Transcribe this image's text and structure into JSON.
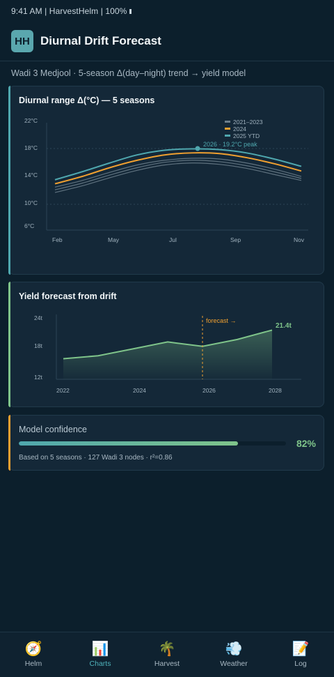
{
  "status_bar": {
    "text": "9:41 AM | HarvestHelm | 100%"
  },
  "app": {
    "logo": "HH",
    "title": "Diurnal Drift Forecast"
  },
  "subtitle": "Wadi 3 Medjool · 5-season Δ(day–night) trend → yield model",
  "colors": {
    "accent_teal": "#4fa7ae",
    "accent_orange": "#f0a030",
    "accent_green": "#7fc48a",
    "background": "#0c1f2c",
    "card": "#142838"
  },
  "diurnal_card": {
    "title": "Diurnal range Δ(°C) — 5 seasons",
    "peak_label": "2026 · 19.2°C peak"
  },
  "yield_card": {
    "title": "Yield forecast from drift",
    "forecast_label": "forecast →",
    "end_label": "21.4t"
  },
  "confidence_card": {
    "label": "Model confidence",
    "value_text": "82%",
    "value": 0.82,
    "footnote": "Based on 5 seasons · 127 Wadi 3 nodes · r²=0.86"
  },
  "tabs": [
    {
      "label": "Helm",
      "icon": "compass-icon",
      "glyph": "🧭",
      "active": false
    },
    {
      "label": "Charts",
      "icon": "bar-chart-icon",
      "glyph": "📊",
      "active": true
    },
    {
      "label": "Harvest",
      "icon": "palm-tree-icon",
      "glyph": "🌴",
      "active": false
    },
    {
      "label": "Weather",
      "icon": "wind-icon",
      "glyph": "💨",
      "active": false
    },
    {
      "label": "Log",
      "icon": "memo-icon",
      "glyph": "📝",
      "active": false
    }
  ],
  "chart_data": [
    {
      "type": "line",
      "title": "Diurnal range Δ(°C) — 5 seasons",
      "x_ticks": [
        "Feb",
        "May",
        "Jul",
        "Sep",
        "Nov"
      ],
      "y_ticks": [
        "22°C",
        "18°C",
        "14°C",
        "10°C",
        "6°C"
      ],
      "ylim": [
        6,
        22
      ],
      "grid": "dotted horizontal at 10°C and 18°C",
      "legend": {
        "placement": "top-right",
        "entries": [
          "2021–2023",
          "2024",
          "2025 YTD"
        ]
      },
      "annotation": "2026 · 19.2°C peak",
      "series": [
        {
          "name": "2021–2023",
          "color": "#6c7f8c",
          "x": [
            0,
            1,
            2,
            3,
            4,
            5,
            6,
            7,
            8,
            9
          ],
          "y": [
            11.6,
            12.6,
            13.8,
            14.9,
            15.7,
            16.0,
            15.8,
            15.2,
            14.3,
            13.4
          ]
        },
        {
          "color": "#6c7f8c",
          "x": [
            0,
            1,
            2,
            3,
            4,
            5,
            6,
            7,
            8,
            9
          ],
          "y": [
            12.0,
            13.0,
            14.2,
            15.3,
            16.1,
            16.4,
            16.2,
            15.6,
            14.7,
            13.7
          ]
        },
        {
          "color": "#6c7f8c",
          "x": [
            0,
            1,
            2,
            3,
            4,
            5,
            6,
            7,
            8,
            9
          ],
          "y": [
            12.4,
            13.4,
            14.6,
            15.7,
            16.4,
            16.7,
            16.6,
            16.0,
            15.1,
            14.0
          ]
        },
        {
          "name": "2024",
          "color": "#f0a030",
          "x": [
            0,
            1,
            2,
            3,
            4,
            5,
            6,
            7,
            8,
            9
          ],
          "y": [
            12.9,
            14.0,
            15.3,
            16.4,
            17.2,
            17.5,
            17.4,
            16.8,
            15.9,
            14.8
          ]
        },
        {
          "name": "2025 YTD",
          "color": "#4fa7ae",
          "x": [
            0,
            1,
            2,
            3,
            4,
            5,
            6,
            7,
            8,
            9
          ],
          "y": [
            13.5,
            14.7,
            16.0,
            17.2,
            17.9,
            18.1,
            18.0,
            17.5,
            16.6,
            15.5
          ]
        }
      ]
    },
    {
      "type": "area",
      "title": "Yield forecast from drift",
      "x_ticks": [
        "2022",
        "2024",
        "2026",
        "2028"
      ],
      "y_ticks": [
        "24t",
        "18t",
        "12t"
      ],
      "ylim": [
        12,
        24
      ],
      "annotation": "forecast →",
      "x": [
        2022,
        2023,
        2024,
        2025,
        2026,
        2027,
        2028
      ],
      "values": [
        15.6,
        16.2,
        17.6,
        19.0,
        18.1,
        19.5,
        21.4
      ]
    }
  ]
}
